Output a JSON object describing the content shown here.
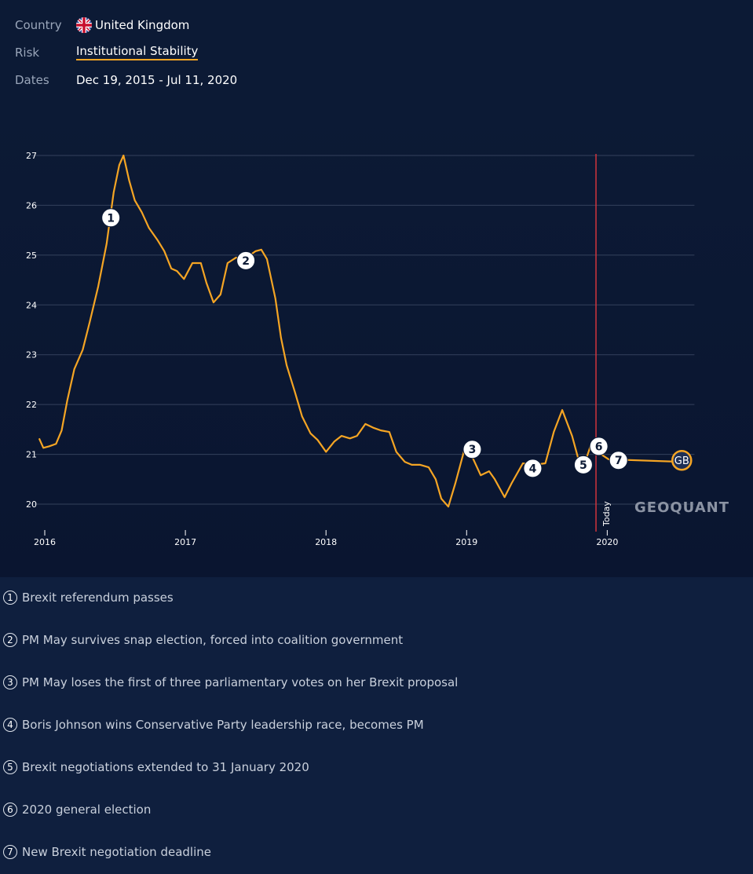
{
  "meta": {
    "fields": [
      {
        "label": "Country",
        "value": "United Kingdom"
      },
      {
        "label": "Risk",
        "value": "Institutional Stability"
      },
      {
        "label": "Dates",
        "value": "Dec 19, 2015 - Jul 11, 2020"
      }
    ]
  },
  "chart_data": {
    "type": "line",
    "x": [
      2015.96,
      2015.99,
      2016.03,
      2016.08,
      2016.12,
      2016.16,
      2016.21,
      2016.27,
      2016.32,
      2016.38,
      2016.44,
      2016.49,
      2016.53,
      2016.56,
      2016.6,
      2016.64,
      2016.69,
      2016.74,
      2016.8,
      2016.85,
      2016.9,
      2016.94,
      2016.99,
      2017.05,
      2017.11,
      2017.15,
      2017.2,
      2017.25,
      2017.3,
      2017.36,
      2017.42,
      2017.5,
      2017.54,
      2017.58,
      2017.64,
      2017.68,
      2017.72,
      2017.78,
      2017.83,
      2017.89,
      2017.94,
      2018.0,
      2018.06,
      2018.11,
      2018.17,
      2018.22,
      2018.28,
      2018.34,
      2018.39,
      2018.45,
      2018.5,
      2018.56,
      2018.61,
      2018.67,
      2018.73,
      2018.78,
      2018.82,
      2018.87,
      2018.92,
      2018.98,
      2019.03,
      2019.1,
      2019.16,
      2019.2,
      2019.27,
      2019.32,
      2019.4,
      2019.48,
      2019.56,
      2019.62,
      2019.68,
      2019.75,
      2019.8,
      2019.84,
      2019.88,
      2019.93,
      2020.01,
      2020.53
    ],
    "series": [
      {
        "color": "#f5a524",
        "values": [
          21.32,
          21.13,
          21.16,
          21.21,
          21.48,
          22.08,
          22.71,
          23.1,
          23.66,
          24.37,
          25.23,
          26.26,
          26.81,
          27.0,
          26.5,
          26.1,
          25.86,
          25.55,
          25.31,
          25.08,
          24.73,
          24.68,
          24.52,
          24.84,
          24.84,
          24.44,
          24.05,
          24.21,
          24.84,
          24.95,
          24.92,
          25.08,
          25.11,
          24.92,
          24.13,
          23.34,
          22.79,
          22.24,
          21.76,
          21.42,
          21.29,
          21.05,
          21.26,
          21.37,
          21.32,
          21.37,
          21.61,
          21.53,
          21.48,
          21.45,
          21.05,
          20.85,
          20.79,
          20.79,
          20.74,
          20.5,
          20.11,
          19.95,
          20.42,
          21.05,
          21.01,
          20.58,
          20.66,
          20.5,
          20.14,
          20.42,
          20.82,
          20.79,
          20.82,
          21.45,
          21.89,
          21.37,
          20.85,
          20.82,
          21.16,
          21.05,
          20.9,
          20.85
        ]
      }
    ],
    "xlim": [
      2015.905,
      2020.62
    ],
    "ylim": [
      19.48,
      27
    ],
    "xticks": [
      2016,
      2017,
      2018,
      2019,
      2020
    ],
    "yticks": [
      20,
      21,
      22,
      23,
      24,
      25,
      26,
      27
    ],
    "grid": true,
    "today": {
      "x": 2019.92,
      "label": "Today",
      "color": "#d0343c"
    },
    "end_marker": {
      "x": 2020.53,
      "y": 20.88,
      "label": "GB"
    },
    "watermark": "GEOQUANT",
    "annotations": [
      {
        "label": "1",
        "x": 2016.47,
        "y": 25.75,
        "text": "Brexit referendum passes"
      },
      {
        "label": "2",
        "x": 2017.43,
        "y": 24.89,
        "text": "PM May survives snap election, forced into coalition government"
      },
      {
        "label": "3",
        "x": 2019.04,
        "y": 21.1,
        "text": "PM May loses the first of three parliamentary votes on her Brexit proposal"
      },
      {
        "label": "4",
        "x": 2019.47,
        "y": 20.72,
        "text": "Boris Johnson wins Conservative Party leadership race, becomes PM"
      },
      {
        "label": "5",
        "x": 2019.83,
        "y": 20.79,
        "text": "Brexit negotiations extended to 31 January 2020"
      },
      {
        "label": "6",
        "x": 2019.94,
        "y": 21.16,
        "text": "2020 general election"
      },
      {
        "label": "7",
        "x": 2020.08,
        "y": 20.88,
        "text": "New Brexit negotiation deadline"
      }
    ]
  }
}
